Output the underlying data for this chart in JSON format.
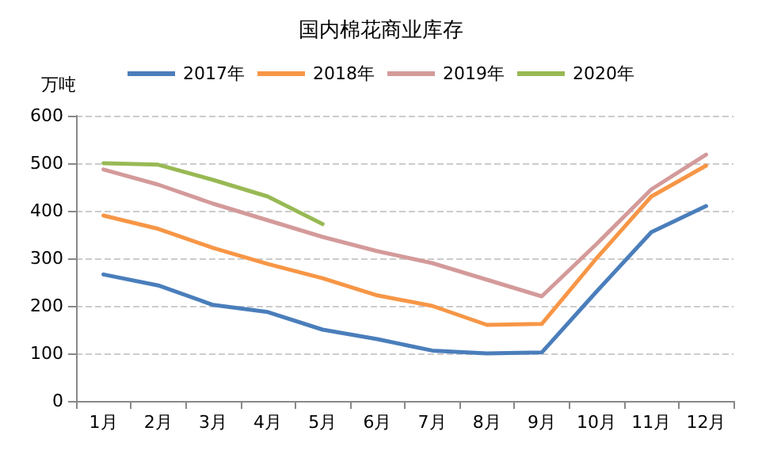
{
  "chart_data": {
    "type": "line",
    "title": "国内棉花商业库存",
    "ylabel": "万吨",
    "categories": [
      "1月",
      "2月",
      "3月",
      "4月",
      "5月",
      "6月",
      "7月",
      "8月",
      "9月",
      "10月",
      "11月",
      "12月"
    ],
    "series": [
      {
        "name": "2017年",
        "color": "#4a7ebb",
        "values": [
          266,
          243,
          202,
          187,
          150,
          130,
          106,
          100,
          102,
          230,
          355,
          410
        ]
      },
      {
        "name": "2018年",
        "color": "#f79646",
        "values": [
          390,
          362,
          322,
          288,
          258,
          222,
          200,
          160,
          162,
          300,
          430,
          495
        ]
      },
      {
        "name": "2019年",
        "color": "#d49a9a",
        "values": [
          487,
          455,
          415,
          380,
          345,
          315,
          290,
          255,
          220,
          330,
          445,
          518
        ]
      },
      {
        "name": "2020年",
        "color": "#98b954",
        "values": [
          500,
          497,
          465,
          430,
          372,
          null,
          null,
          null,
          null,
          null,
          null,
          null
        ]
      }
    ],
    "ylim": [
      0,
      600
    ],
    "yticks": [
      0,
      100,
      200,
      300,
      400,
      500,
      600
    ],
    "grid": "y",
    "legend": "top",
    "marker": "none",
    "line_style": "solid"
  }
}
